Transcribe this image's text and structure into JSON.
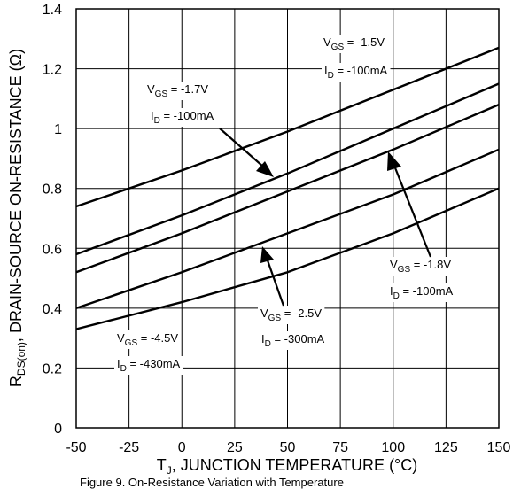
{
  "chart_data": {
    "type": "line",
    "title": "",
    "xlabel": "T_J, JUNCTION TEMPERATURE (°C)",
    "ylabel": "R_DS(on), DRAIN-SOURCE ON-RESISTANCE (Ω)",
    "xlim": [
      -50,
      150
    ],
    "ylim": [
      0,
      1.4
    ],
    "x_ticks": [
      -50,
      -25,
      0,
      25,
      50,
      75,
      100,
      125,
      150
    ],
    "x_tick_labels": [
      "-50",
      "-25",
      "0",
      "25",
      "50",
      "75",
      "100",
      "125",
      "150"
    ],
    "y_ticks": [
      0,
      0.2,
      0.4,
      0.6,
      0.8,
      1.0,
      1.2,
      1.4
    ],
    "y_tick_labels": [
      "0",
      "0.2",
      "0.4",
      "0.6",
      "0.8",
      "1",
      "1.2",
      "1.4"
    ],
    "grid": true,
    "x": [
      -50,
      0,
      50,
      100,
      150
    ],
    "series": [
      {
        "vgs": "V_GS = -1.5V",
        "id": "I_D = -100mA",
        "values": [
          0.74,
          0.86,
          0.99,
          1.13,
          1.27
        ]
      },
      {
        "vgs": "V_GS = -1.7V",
        "id": "I_D = -100mA",
        "values": [
          0.58,
          0.71,
          0.85,
          1.0,
          1.15
        ]
      },
      {
        "vgs": "V_GS = -1.8V",
        "id": "I_D = -100mA",
        "values": [
          0.52,
          0.65,
          0.79,
          0.93,
          1.08
        ]
      },
      {
        "vgs": "V_GS = -2.5V",
        "id": "I_D = -300mA",
        "values": [
          0.4,
          0.52,
          0.65,
          0.78,
          0.93
        ]
      },
      {
        "vgs": "V_GS = -4.5V",
        "id": "I_D = -430mA",
        "values": [
          0.33,
          0.42,
          0.52,
          0.65,
          0.8
        ]
      }
    ]
  },
  "annotations": [
    {
      "vgs_main": "V",
      "vgs_sub": "GS",
      "vgs_rest": " = -1.5V",
      "id_main": "I",
      "id_sub": "D",
      "id_rest": " = -100mA"
    },
    {
      "vgs_main": "V",
      "vgs_sub": "GS",
      "vgs_rest": " = -1.7V",
      "id_main": "I",
      "id_sub": "D",
      "id_rest": " = -100mA"
    },
    {
      "vgs_main": "V",
      "vgs_sub": "GS",
      "vgs_rest": " = -1.8V",
      "id_main": "I",
      "id_sub": "D",
      "id_rest": " = -100mA"
    },
    {
      "vgs_main": "V",
      "vgs_sub": "GS",
      "vgs_rest": " = -2.5V",
      "id_main": "I",
      "id_sub": "D",
      "id_rest": " = -300mA"
    },
    {
      "vgs_main": "V",
      "vgs_sub": "GS",
      "vgs_rest": " = -4.5V",
      "id_main": "I",
      "id_sub": "D",
      "id_rest": " = -430mA"
    }
  ],
  "axis_titles": {
    "x_main": "T",
    "x_sub": "J",
    "x_rest": ", JUNCTION TEMPERATURE (°C)",
    "y_main": "R",
    "y_sub": "DS(on)",
    "y_rest": ", DRAIN-SOURCE ON-RESISTANCE (Ω)"
  },
  "caption": "Figure 9. On-Resistance Variation with Temperature"
}
